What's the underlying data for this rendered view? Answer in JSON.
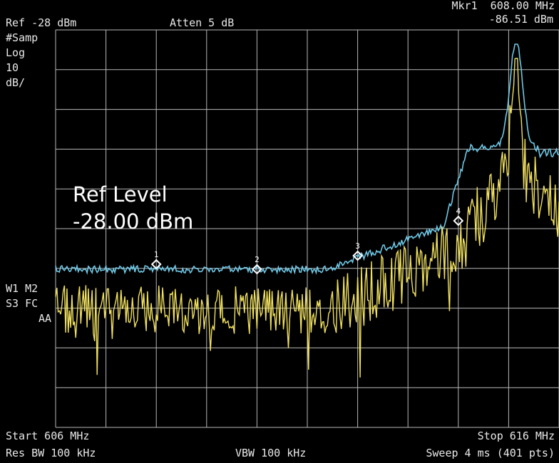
{
  "header": {
    "marker_readout": "Mkr1  608.00 MHz",
    "marker_level": "-86.51 dBm",
    "ref": "Ref -28 dBm",
    "atten": "Atten 5 dB"
  },
  "left_panel": {
    "detector": "#Samp",
    "scale_type": "Log",
    "scale_value": "10",
    "scale_unit": "dB/",
    "status_line1": "W1 M2",
    "status_line2": "S3 FC",
    "status_line3": "AA"
  },
  "overlay": {
    "line1": "Ref Level",
    "line2": "-28.00 dBm"
  },
  "footer": {
    "start": "Start 606 MHz",
    "stop": "Stop 616 MHz",
    "rbw": "Res BW 100 kHz",
    "vbw": "VBW 100 kHz",
    "sweep": "Sweep 4 ms (401 pts)"
  },
  "colors": {
    "grid": "#b8b8b8",
    "trace_max": "#6ec8e6",
    "trace_live": "#f0e060",
    "marker": "#ffffff"
  },
  "markers": [
    {
      "label": "1",
      "freq_mhz": 608.0
    },
    {
      "label": "2",
      "freq_mhz": 610.0
    },
    {
      "label": "3",
      "freq_mhz": 612.0
    },
    {
      "label": "4",
      "freq_mhz": 614.0
    }
  ]
}
